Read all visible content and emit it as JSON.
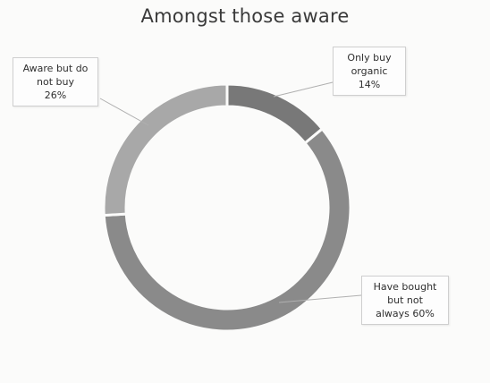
{
  "chart_data": {
    "type": "pie",
    "variant": "doughnut",
    "title": "Amongst those aware",
    "categories": [
      "Only buy organic",
      "Have bought but not always",
      "Aware but do not buy"
    ],
    "values": [
      14,
      60,
      26
    ],
    "value_labels": [
      "14%",
      "60%",
      "26%"
    ],
    "colors": [
      "#787878",
      "#8a8a8a",
      "#a8a8a8"
    ],
    "label_lines": {
      "organic": [
        "Only buy",
        "organic",
        "14%"
      ],
      "bought": [
        "Have bought",
        "but not",
        "always 60%"
      ],
      "aware": [
        "Aware but do",
        "not buy",
        "26%"
      ]
    }
  }
}
